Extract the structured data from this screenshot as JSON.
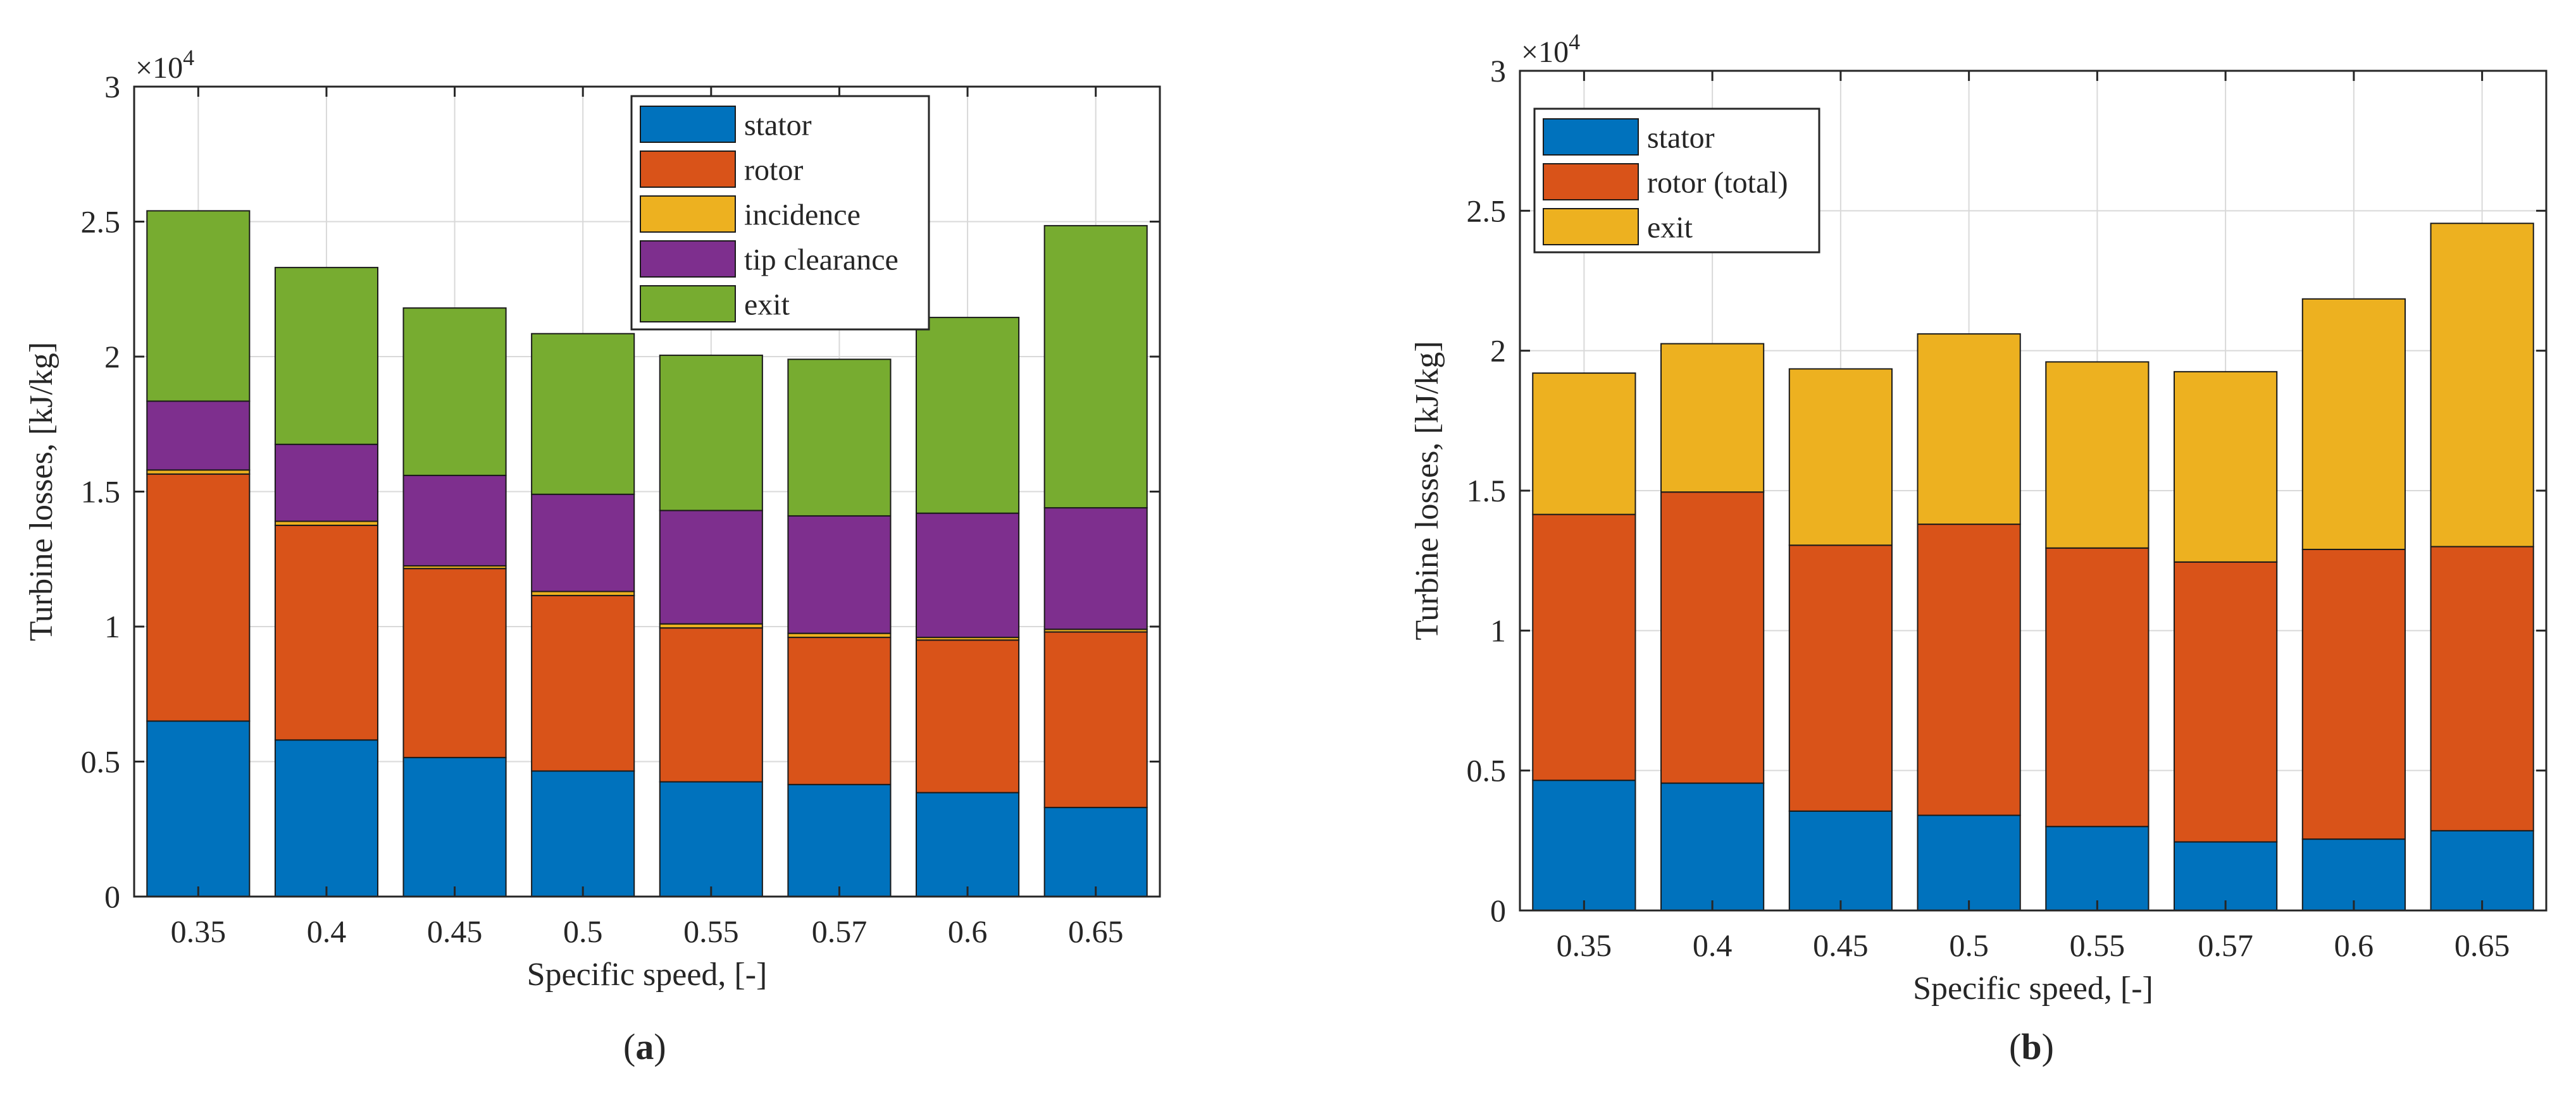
{
  "chart_data": [
    {
      "type": "bar",
      "stacked": true,
      "panel_label": "(a)",
      "panel_letter": "a",
      "categories": [
        "0.35",
        "0.4",
        "0.45",
        "0.5",
        "0.55",
        "0.57",
        "0.6",
        "0.65"
      ],
      "series": [
        {
          "name": "stator",
          "color": "#0072BD",
          "values": [
            6500,
            5800,
            5150,
            4650,
            4250,
            4150,
            3850,
            3300
          ]
        },
        {
          "name": "rotor",
          "color": "#D95319",
          "values": [
            9150,
            7950,
            7000,
            6500,
            5700,
            5450,
            5650,
            6500
          ]
        },
        {
          "name": "incidence",
          "color": "#EDB120",
          "values": [
            150,
            150,
            100,
            150,
            150,
            150,
            100,
            100
          ]
        },
        {
          "name": "tip clearance",
          "color": "#7E2F8E",
          "values": [
            2550,
            2850,
            3350,
            3600,
            4200,
            4350,
            4600,
            4500
          ]
        },
        {
          "name": "exit",
          "color": "#77AC30",
          "values": [
            7050,
            6550,
            6200,
            5950,
            5750,
            5800,
            7250,
            10450
          ]
        }
      ],
      "ylabel": "Turbine losses, [kJ/kg]",
      "xlabel": "Specific speed, [-]",
      "ylim": [
        0,
        30000
      ],
      "yticks": [
        0,
        5000,
        10000,
        15000,
        20000,
        25000,
        30000
      ],
      "ytick_labels": [
        "0",
        "0.5",
        "1",
        "1.5",
        "2",
        "2.5",
        "3"
      ],
      "y_exponent_label": "×10",
      "y_exponent_power": "4",
      "grid": true,
      "legend_position": "top-right"
    },
    {
      "type": "bar",
      "stacked": true,
      "panel_label": "(b)",
      "panel_letter": "b",
      "categories": [
        "0.35",
        "0.4",
        "0.45",
        "0.5",
        "0.55",
        "0.57",
        "0.6",
        "0.65"
      ],
      "series": [
        {
          "name": "stator",
          "color": "#0072BD",
          "values": [
            4650,
            4550,
            3550,
            3400,
            3000,
            2450,
            2550,
            2850
          ]
        },
        {
          "name": "rotor (total)",
          "color": "#D95319",
          "values": [
            9500,
            10400,
            9500,
            10400,
            9950,
            10000,
            10350,
            10150
          ]
        },
        {
          "name": "exit",
          "color": "#EDB120",
          "values": [
            5050,
            5300,
            6300,
            6800,
            6650,
            6800,
            8950,
            11550
          ]
        }
      ],
      "ylabel": "Turbine losses, [kJ/kg]",
      "xlabel": "Specific speed, [-]",
      "ylim": [
        0,
        30000
      ],
      "yticks": [
        0,
        5000,
        10000,
        15000,
        20000,
        25000,
        30000
      ],
      "ytick_labels": [
        "0",
        "0.5",
        "1",
        "1.5",
        "2",
        "2.5",
        "3"
      ],
      "y_exponent_label": "×10",
      "y_exponent_power": "4",
      "grid": true,
      "legend_position": "top-left"
    }
  ]
}
